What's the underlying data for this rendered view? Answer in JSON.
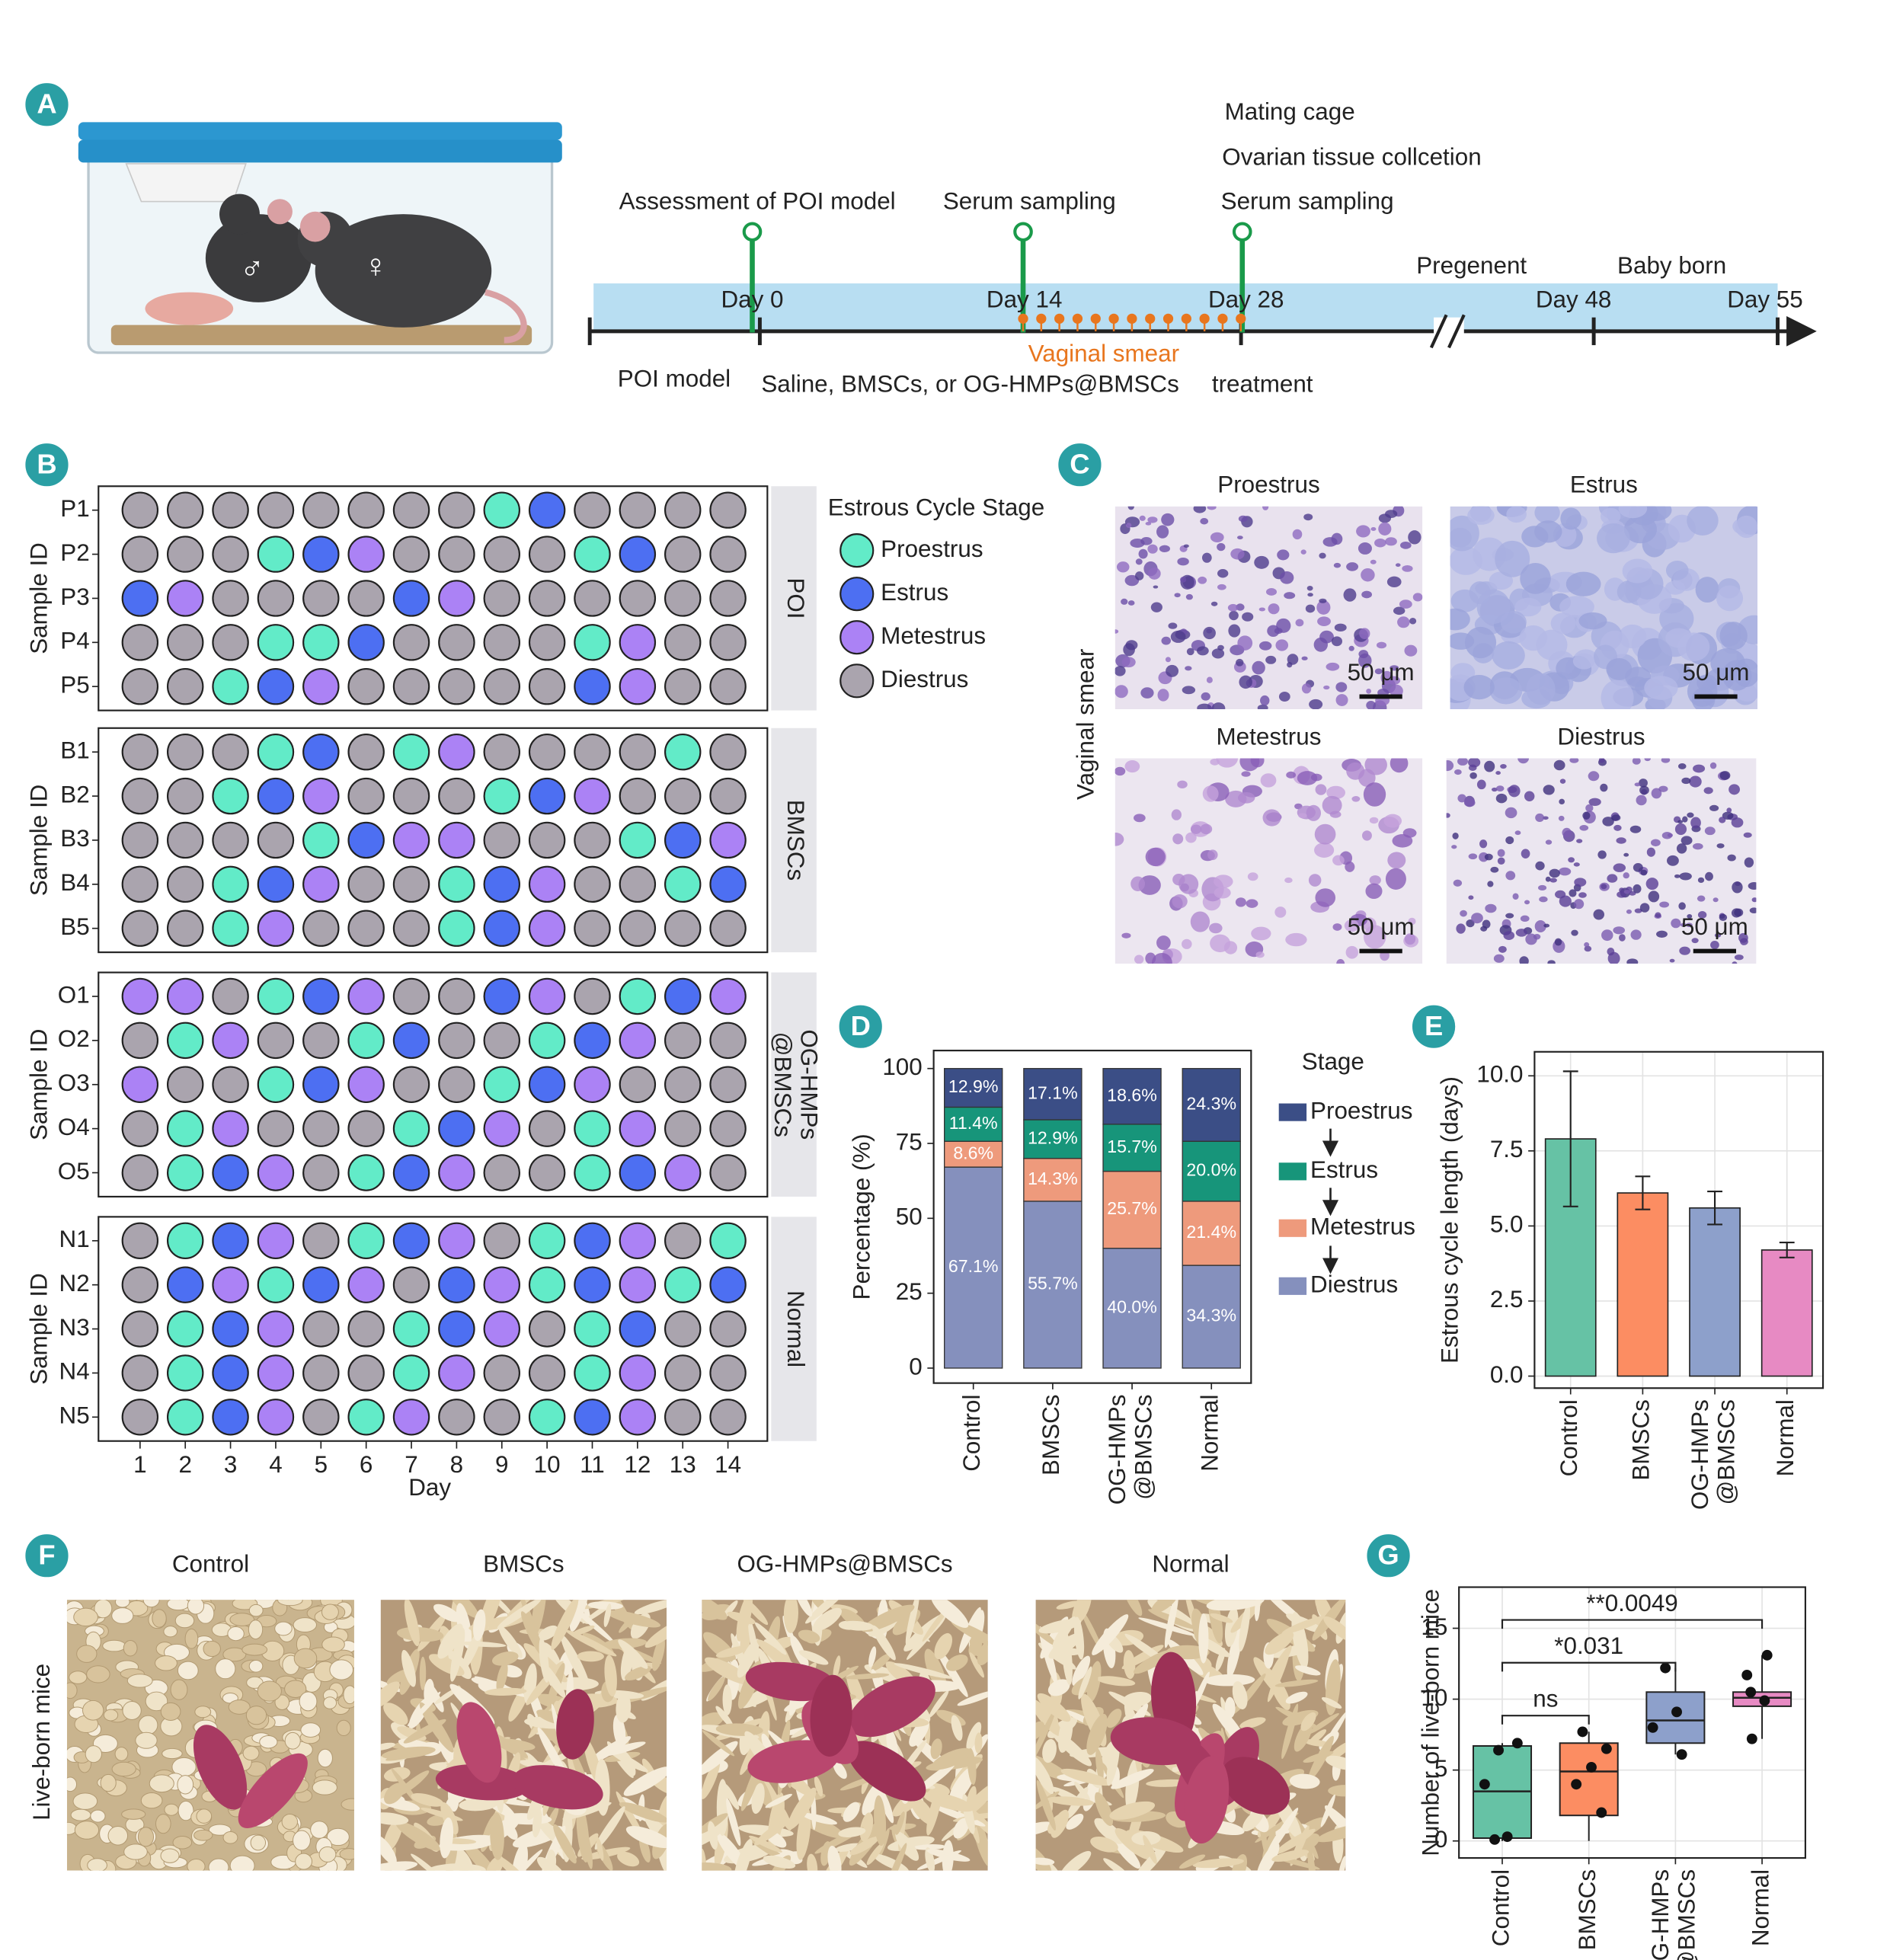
{
  "panel_labels": [
    "A",
    "B",
    "C",
    "D",
    "E",
    "F",
    "G"
  ],
  "cage_symbols": [
    "♂",
    "♀"
  ],
  "timeline": {
    "above": [
      "Assessment of POI model",
      "Serum sampling",
      "Mating cage",
      "Ovarian tissue collcetion",
      "Serum sampling",
      "Pregenent",
      "Baby born"
    ],
    "days": [
      "Day 0",
      "Day 14",
      "Day 28",
      "Day 48",
      "Day 55"
    ],
    "smear": "Vaginal smear",
    "below": [
      "POI model",
      "Saline, BMSCs, or OG-HMPs@BMSCs",
      "treatment"
    ]
  },
  "smear_images": {
    "ylabel": "Vaginal smear",
    "titles": [
      "Proestrus",
      "Estrus",
      "Metestrus",
      "Diestrus"
    ],
    "scale_bars": [
      "50 μm",
      "50 μm",
      "50 μm",
      "50 μm"
    ]
  },
  "pup_photos": {
    "ylabel": "Live-born mice",
    "titles": [
      "Control",
      "BMSCs",
      "OG-HMPs@BMSCs",
      "Normal"
    ]
  },
  "chart_data": [
    {
      "type": "dot_matrix",
      "xlabel": "Day",
      "ylabel": "Sample ID",
      "legend_title": "Estrous Cycle Stage",
      "stages": [
        {
          "name": "Proestrus",
          "color": "#62ebc8"
        },
        {
          "name": "Estrus",
          "color": "#4d6ff2"
        },
        {
          "name": "Metestrus",
          "color": "#ab82f5"
        },
        {
          "name": "Diestrus",
          "color": "#aaa4ae"
        }
      ],
      "xticks": [
        1,
        2,
        3,
        4,
        5,
        6,
        7,
        8,
        9,
        10,
        11,
        12,
        13,
        14
      ],
      "groups": [
        {
          "name": "POI",
          "rows": [
            {
              "name": "P1",
              "values": [
                "Diestrus",
                "Diestrus",
                "Diestrus",
                "Diestrus",
                "Diestrus",
                "Diestrus",
                "Diestrus",
                "Diestrus",
                "Proestrus",
                "Estrus",
                "Diestrus",
                "Diestrus",
                "Diestrus",
                "Diestrus"
              ]
            },
            {
              "name": "P2",
              "values": [
                "Diestrus",
                "Diestrus",
                "Diestrus",
                "Proestrus",
                "Estrus",
                "Metestrus",
                "Diestrus",
                "Diestrus",
                "Diestrus",
                "Diestrus",
                "Proestrus",
                "Estrus",
                "Diestrus",
                "Diestrus"
              ]
            },
            {
              "name": "P3",
              "values": [
                "Estrus",
                "Metestrus",
                "Diestrus",
                "Diestrus",
                "Diestrus",
                "Diestrus",
                "Estrus",
                "Metestrus",
                "Diestrus",
                "Diestrus",
                "Diestrus",
                "Diestrus",
                "Diestrus",
                "Diestrus"
              ]
            },
            {
              "name": "P4",
              "values": [
                "Diestrus",
                "Diestrus",
                "Diestrus",
                "Proestrus",
                "Proestrus",
                "Estrus",
                "Diestrus",
                "Diestrus",
                "Diestrus",
                "Diestrus",
                "Proestrus",
                "Metestrus",
                "Diestrus",
                "Diestrus"
              ]
            },
            {
              "name": "P5",
              "values": [
                "Diestrus",
                "Diestrus",
                "Proestrus",
                "Estrus",
                "Metestrus",
                "Diestrus",
                "Diestrus",
                "Diestrus",
                "Diestrus",
                "Diestrus",
                "Estrus",
                "Metestrus",
                "Diestrus",
                "Diestrus"
              ]
            }
          ]
        },
        {
          "name": "BMSCs",
          "rows": [
            {
              "name": "B1",
              "values": [
                "Diestrus",
                "Diestrus",
                "Diestrus",
                "Proestrus",
                "Estrus",
                "Diestrus",
                "Proestrus",
                "Metestrus",
                "Diestrus",
                "Diestrus",
                "Diestrus",
                "Diestrus",
                "Proestrus",
                "Diestrus"
              ]
            },
            {
              "name": "B2",
              "values": [
                "Diestrus",
                "Diestrus",
                "Proestrus",
                "Estrus",
                "Metestrus",
                "Diestrus",
                "Diestrus",
                "Diestrus",
                "Proestrus",
                "Estrus",
                "Metestrus",
                "Diestrus",
                "Diestrus",
                "Diestrus"
              ]
            },
            {
              "name": "B3",
              "values": [
                "Diestrus",
                "Diestrus",
                "Diestrus",
                "Diestrus",
                "Proestrus",
                "Estrus",
                "Metestrus",
                "Metestrus",
                "Diestrus",
                "Diestrus",
                "Diestrus",
                "Proestrus",
                "Estrus",
                "Metestrus"
              ]
            },
            {
              "name": "B4",
              "values": [
                "Diestrus",
                "Diestrus",
                "Proestrus",
                "Estrus",
                "Metestrus",
                "Diestrus",
                "Diestrus",
                "Proestrus",
                "Estrus",
                "Metestrus",
                "Diestrus",
                "Diestrus",
                "Proestrus",
                "Estrus"
              ]
            },
            {
              "name": "B5",
              "values": [
                "Diestrus",
                "Diestrus",
                "Proestrus",
                "Metestrus",
                "Diestrus",
                "Diestrus",
                "Diestrus",
                "Proestrus",
                "Estrus",
                "Metestrus",
                "Diestrus",
                "Diestrus",
                "Diestrus",
                "Diestrus"
              ]
            }
          ]
        },
        {
          "name": "OG-HMPs\n@BMSCs",
          "rows": [
            {
              "name": "O1",
              "values": [
                "Metestrus",
                "Metestrus",
                "Diestrus",
                "Proestrus",
                "Estrus",
                "Metestrus",
                "Diestrus",
                "Diestrus",
                "Estrus",
                "Metestrus",
                "Diestrus",
                "Proestrus",
                "Estrus",
                "Metestrus"
              ]
            },
            {
              "name": "O2",
              "values": [
                "Diestrus",
                "Proestrus",
                "Metestrus",
                "Diestrus",
                "Diestrus",
                "Proestrus",
                "Estrus",
                "Diestrus",
                "Diestrus",
                "Proestrus",
                "Estrus",
                "Metestrus",
                "Diestrus",
                "Diestrus"
              ]
            },
            {
              "name": "O3",
              "values": [
                "Metestrus",
                "Diestrus",
                "Diestrus",
                "Proestrus",
                "Estrus",
                "Metestrus",
                "Diestrus",
                "Diestrus",
                "Proestrus",
                "Estrus",
                "Metestrus",
                "Diestrus",
                "Diestrus",
                "Diestrus"
              ]
            },
            {
              "name": "O4",
              "values": [
                "Diestrus",
                "Proestrus",
                "Metestrus",
                "Diestrus",
                "Diestrus",
                "Diestrus",
                "Proestrus",
                "Estrus",
                "Metestrus",
                "Diestrus",
                "Proestrus",
                "Metestrus",
                "Diestrus",
                "Diestrus"
              ]
            },
            {
              "name": "O5",
              "values": [
                "Diestrus",
                "Proestrus",
                "Estrus",
                "Metestrus",
                "Diestrus",
                "Proestrus",
                "Estrus",
                "Metestrus",
                "Diestrus",
                "Diestrus",
                "Proestrus",
                "Estrus",
                "Metestrus",
                "Diestrus"
              ]
            }
          ]
        },
        {
          "name": "Normal",
          "rows": [
            {
              "name": "N1",
              "values": [
                "Diestrus",
                "Proestrus",
                "Estrus",
                "Metestrus",
                "Diestrus",
                "Proestrus",
                "Estrus",
                "Metestrus",
                "Diestrus",
                "Proestrus",
                "Estrus",
                "Metestrus",
                "Diestrus",
                "Proestrus"
              ]
            },
            {
              "name": "N2",
              "values": [
                "Diestrus",
                "Estrus",
                "Metestrus",
                "Proestrus",
                "Estrus",
                "Metestrus",
                "Diestrus",
                "Estrus",
                "Metestrus",
                "Proestrus",
                "Estrus",
                "Metestrus",
                "Proestrus",
                "Estrus"
              ]
            },
            {
              "name": "N3",
              "values": [
                "Diestrus",
                "Proestrus",
                "Estrus",
                "Metestrus",
                "Diestrus",
                "Diestrus",
                "Proestrus",
                "Estrus",
                "Metestrus",
                "Diestrus",
                "Proestrus",
                "Estrus",
                "Diestrus",
                "Diestrus"
              ]
            },
            {
              "name": "N4",
              "values": [
                "Diestrus",
                "Proestrus",
                "Estrus",
                "Metestrus",
                "Diestrus",
                "Diestrus",
                "Proestrus",
                "Metestrus",
                "Diestrus",
                "Diestrus",
                "Proestrus",
                "Metestrus",
                "Diestrus",
                "Diestrus"
              ]
            },
            {
              "name": "N5",
              "values": [
                "Diestrus",
                "Proestrus",
                "Estrus",
                "Metestrus",
                "Diestrus",
                "Proestrus",
                "Metestrus",
                "Diestrus",
                "Diestrus",
                "Proestrus",
                "Estrus",
                "Metestrus",
                "Diestrus",
                "Diestrus"
              ]
            }
          ]
        }
      ]
    },
    {
      "type": "stacked_bar",
      "ylabel": "Percentage (%)",
      "legend_title": "Stage",
      "categories": [
        "Control",
        "BMSCs",
        "OG-HMPs\n@BMSCs",
        "Normal"
      ],
      "series": [
        {
          "name": "Proestrus",
          "color": "#3b4e86",
          "values": [
            12.9,
            17.1,
            18.6,
            24.3
          ],
          "value_labels": [
            "12.9%",
            "17.1%",
            "18.6%",
            "24.3%"
          ]
        },
        {
          "name": "Estrus",
          "color": "#17957a",
          "values": [
            11.4,
            12.9,
            15.7,
            20
          ],
          "value_labels": [
            "11.4%",
            "12.9%",
            "15.7%",
            "20.0%"
          ]
        },
        {
          "name": "Metestrus",
          "color": "#ee9a7c",
          "values": [
            8.6,
            14.3,
            25.7,
            21.4
          ],
          "value_labels": [
            "8.6%",
            "14.3%",
            "25.7%",
            "21.4%"
          ]
        },
        {
          "name": "Diestrus",
          "color": "#8590bd",
          "values": [
            67.1,
            55.7,
            40,
            34.3
          ],
          "value_labels": [
            "67.1%",
            "55.7%",
            "40.0%",
            "34.3%"
          ]
        }
      ],
      "ylim": [
        -5,
        106
      ],
      "yticks": [
        0,
        25,
        50,
        75,
        100
      ]
    },
    {
      "type": "bar_error",
      "ylabel": "Estrous cycle length (days)",
      "categories": [
        "Control",
        "BMSCs",
        "OG-HMPs\n@BMSCs",
        "Normal"
      ],
      "values": [
        7.9,
        6.1,
        5.6,
        4.2
      ],
      "errors": [
        2.25,
        0.55,
        0.55,
        0.25
      ],
      "colors": [
        "#66c2a5",
        "#fc8d62",
        "#8da0cb",
        "#e78ac3"
      ],
      "ylim": [
        -0.4,
        10.8
      ],
      "yticks": [
        {
          "value": 0,
          "label": "0.0"
        },
        {
          "value": 2.5,
          "label": "2.5"
        },
        {
          "value": 5,
          "label": "5.0"
        },
        {
          "value": 7.5,
          "label": "7.5"
        },
        {
          "value": 10,
          "label": "10.0"
        }
      ],
      "grid": true
    },
    {
      "type": "box",
      "ylabel": "Number of live-born mice",
      "categories": [
        "Control",
        "BMSCs",
        "OG-HMPs\n@BMSCs",
        "Normal"
      ],
      "colors": [
        "#66c2a5",
        "#fc8d62",
        "#8da0cb",
        "#e78ac3"
      ],
      "boxes": [
        {
          "min": 0,
          "q1": 0.2,
          "median": 3.5,
          "q3": 6.7,
          "max": 6.9
        },
        {
          "min": 0,
          "q1": 1.8,
          "median": 4.9,
          "q3": 6.9,
          "max": 7.7
        },
        {
          "min": 6.1,
          "q1": 6.9,
          "median": 8.5,
          "q3": 10.5,
          "max": 12.2
        },
        {
          "min": 7.2,
          "q1": 9.5,
          "median": 10.1,
          "q3": 10.5,
          "max": 13.1
        }
      ],
      "points": [
        [
          6.9,
          6.4,
          4.0,
          0.3,
          0.1
        ],
        [
          7.7,
          6.5,
          5.2,
          4.0,
          2.0
        ],
        [
          12.2,
          9.1,
          8.0,
          6.1
        ],
        [
          13.1,
          11.7,
          10.5,
          9.9,
          7.2
        ]
      ],
      "annotations": [
        "ns",
        "*0.031",
        "**0.0049"
      ],
      "ylim": [
        -1.2,
        17.9
      ],
      "yticks": [
        0,
        5,
        10,
        15
      ],
      "grid": true
    }
  ]
}
